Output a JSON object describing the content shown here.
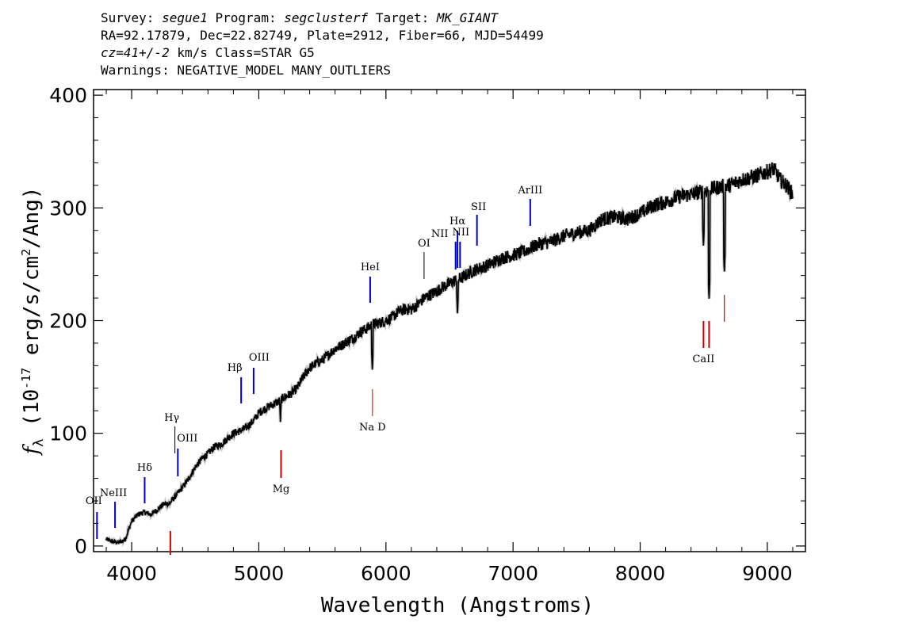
{
  "header": {
    "survey_label": "Survey:",
    "survey": "segue1",
    "program_label": "Program:",
    "program": "segclusterf",
    "target_label": "Target:",
    "target": "MK_GIANT",
    "line2": "RA=92.17879, Dec=22.82749, Plate=2912, Fiber=66, MJD=54499",
    "redshift": "cz=41+/-2",
    "redshift_rest": " km/s Class=STAR G5",
    "warnings": "Warnings: NEGATIVE_MODEL MANY_OUTLIERS"
  },
  "chart_data": {
    "type": "line",
    "xlabel": "Wavelength (Angstroms)",
    "ylabel": "f_λ (10^-17 erg/s/cm^2/Ang)",
    "xlim": [
      3700,
      9300
    ],
    "ylim": [
      -5,
      405
    ],
    "xticks": [
      4000,
      5000,
      6000,
      7000,
      8000,
      9000
    ],
    "yticks": [
      0,
      100,
      200,
      300,
      400
    ],
    "series": [
      {
        "color": "#000000",
        "points": [
          [
            3800,
            6
          ],
          [
            3850,
            4
          ],
          [
            3900,
            3
          ],
          [
            3950,
            6
          ],
          [
            4000,
            22
          ],
          [
            4050,
            28
          ],
          [
            4100,
            30
          ],
          [
            4150,
            28
          ],
          [
            4200,
            32
          ],
          [
            4250,
            37
          ],
          [
            4300,
            38
          ],
          [
            4350,
            45
          ],
          [
            4400,
            52
          ],
          [
            4450,
            60
          ],
          [
            4500,
            70
          ],
          [
            4550,
            77
          ],
          [
            4600,
            82
          ],
          [
            4650,
            88
          ],
          [
            4700,
            90
          ],
          [
            4750,
            95
          ],
          [
            4800,
            100
          ],
          [
            4850,
            102
          ],
          [
            4900,
            105
          ],
          [
            4950,
            110
          ],
          [
            5000,
            118
          ],
          [
            5050,
            122
          ],
          [
            5100,
            125
          ],
          [
            5150,
            128
          ],
          [
            5200,
            132
          ],
          [
            5250,
            135
          ],
          [
            5300,
            140
          ],
          [
            5350,
            150
          ],
          [
            5400,
            158
          ],
          [
            5450,
            162
          ],
          [
            5500,
            165
          ],
          [
            5550,
            170
          ],
          [
            5600,
            175
          ],
          [
            5650,
            178
          ],
          [
            5700,
            182
          ],
          [
            5750,
            185
          ],
          [
            5800,
            190
          ],
          [
            5850,
            193
          ],
          [
            5900,
            197
          ],
          [
            5950,
            198
          ],
          [
            6000,
            200
          ],
          [
            6050,
            203
          ],
          [
            6100,
            208
          ],
          [
            6150,
            210
          ],
          [
            6200,
            210
          ],
          [
            6250,
            214
          ],
          [
            6300,
            220
          ],
          [
            6350,
            223
          ],
          [
            6400,
            226
          ],
          [
            6450,
            230
          ],
          [
            6500,
            233
          ],
          [
            6550,
            236
          ],
          [
            6600,
            238
          ],
          [
            6650,
            242
          ],
          [
            6700,
            245
          ],
          [
            6750,
            247
          ],
          [
            6800,
            249
          ],
          [
            6900,
            255
          ],
          [
            7000,
            258
          ],
          [
            7100,
            262
          ],
          [
            7200,
            268
          ],
          [
            7300,
            270
          ],
          [
            7400,
            275
          ],
          [
            7500,
            278
          ],
          [
            7600,
            280
          ],
          [
            7700,
            290
          ],
          [
            7800,
            292
          ],
          [
            7900,
            290
          ],
          [
            8000,
            295
          ],
          [
            8100,
            302
          ],
          [
            8200,
            305
          ],
          [
            8300,
            310
          ],
          [
            8400,
            312
          ],
          [
            8500,
            315
          ],
          [
            8600,
            318
          ],
          [
            8700,
            320
          ],
          [
            8800,
            325
          ],
          [
            8900,
            328
          ],
          [
            9000,
            332
          ],
          [
            9050,
            335
          ],
          [
            9100,
            325
          ],
          [
            9150,
            320
          ],
          [
            9200,
            312
          ]
        ]
      }
    ],
    "absorption_features": [
      [
        4861,
        145
      ],
      [
        5170,
        110
      ],
      [
        5893,
        155
      ],
      [
        6563,
        205
      ],
      [
        8498,
        265
      ],
      [
        8542,
        218
      ],
      [
        8662,
        242
      ]
    ],
    "emission_lines": [
      {
        "label": "OII",
        "wave": 3727,
        "color": "#0000cc"
      },
      {
        "label": "NeIII",
        "wave": 3869,
        "color": "#0000cc"
      },
      {
        "label": "Hδ",
        "wave": 4102,
        "color": "#0000cc"
      },
      {
        "label": "Hγ",
        "wave": 4340,
        "color": "#000000"
      },
      {
        "label": "OIII",
        "wave": 4363,
        "color": "#0000cc"
      },
      {
        "label": "Hβ",
        "wave": 4861,
        "color": "#0000cc"
      },
      {
        "label": "OIII",
        "wave": 4959,
        "color": "#0000cc"
      },
      {
        "label": "HeI",
        "wave": 5876,
        "color": "#0000cc"
      },
      {
        "label": "OI",
        "wave": 6300,
        "color": "#000000"
      },
      {
        "label": "NII",
        "wave": 6548,
        "color": "#0000cc"
      },
      {
        "label": "Hα",
        "wave": 6563,
        "color": "#0000cc"
      },
      {
        "label": "NII",
        "wave": 6583,
        "color": "#0000cc"
      },
      {
        "label": "SII",
        "wave": 6716,
        "color": "#0000cc"
      },
      {
        "label": "ArIII",
        "wave": 7135,
        "color": "#0000cc"
      }
    ],
    "absorption_lines": [
      {
        "label": "",
        "wave": 4304,
        "color": "#cc0000"
      },
      {
        "label": "Mg",
        "wave": 5175,
        "color": "#cc0000"
      },
      {
        "label": "Na D",
        "wave": 5894,
        "color": "#cc0000"
      },
      {
        "label": "CaII",
        "wave": 8542,
        "color": "#cc0000"
      }
    ]
  }
}
